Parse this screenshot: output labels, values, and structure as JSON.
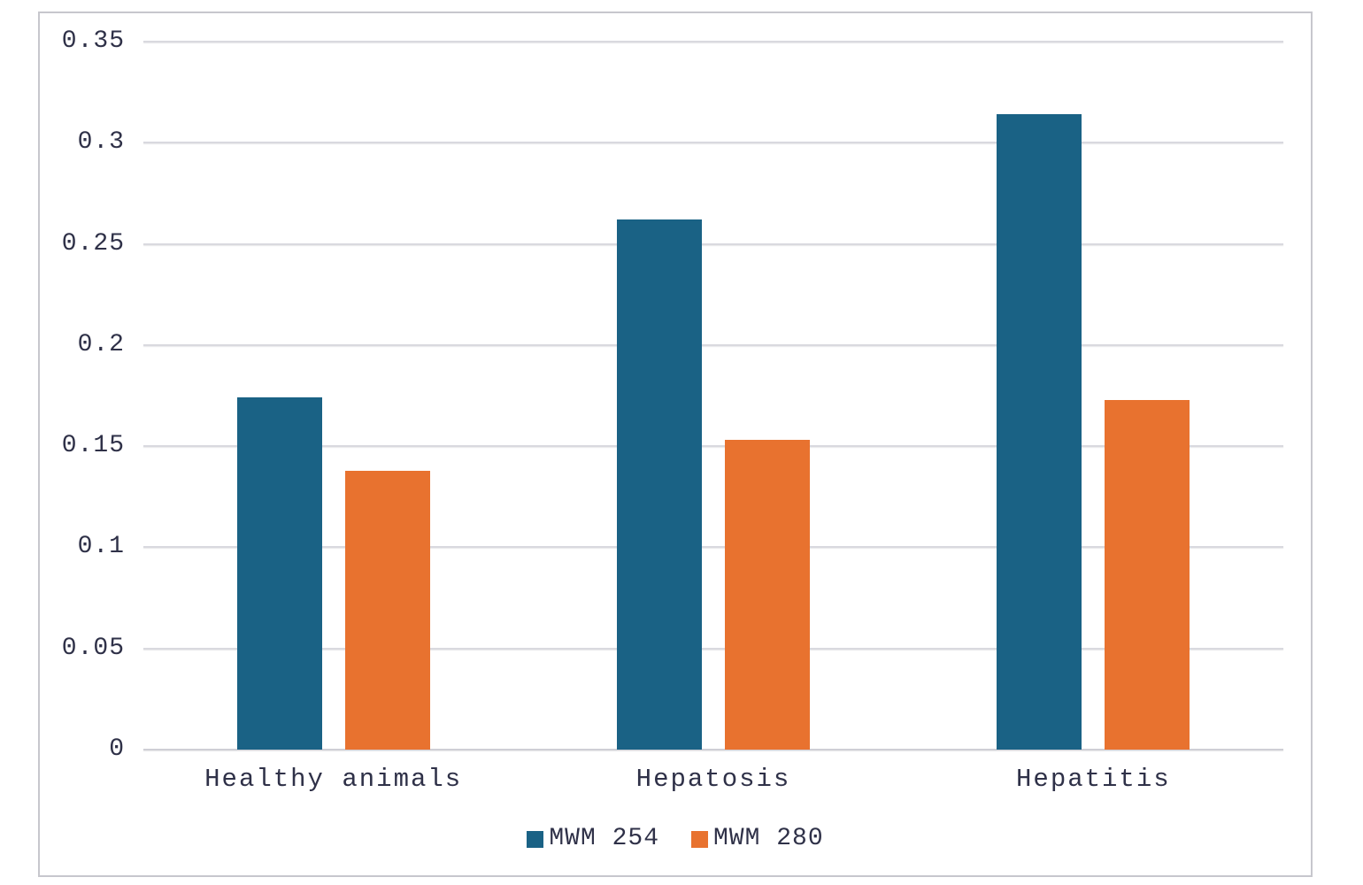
{
  "chart_data": {
    "type": "bar",
    "categories": [
      "Healthy animals",
      "Hepatosis",
      "Hepatitis"
    ],
    "series": [
      {
        "name": "MWM 254",
        "color": "#1A6285",
        "values": [
          0.174,
          0.262,
          0.314
        ]
      },
      {
        "name": "MWM 280",
        "color": "#E8722F",
        "values": [
          0.138,
          0.153,
          0.173
        ]
      }
    ],
    "title": "",
    "xlabel": "",
    "ylabel": "",
    "ylim": [
      0,
      0.35
    ],
    "yticks": [
      0,
      0.05,
      0.1,
      0.15,
      0.2,
      0.25,
      0.3,
      0.35
    ],
    "ytick_labels": [
      "0",
      "0.05",
      "0.1",
      "0.15",
      "0.2",
      "0.25",
      "0.3",
      "0.35"
    ],
    "grid": "horizontal",
    "legend_position": "bottom-center",
    "colors": {
      "text": "#2F3148",
      "gridline": "#D9D9DF",
      "frame_border": "#C7C7CD",
      "background": "#FFFFFF"
    }
  }
}
